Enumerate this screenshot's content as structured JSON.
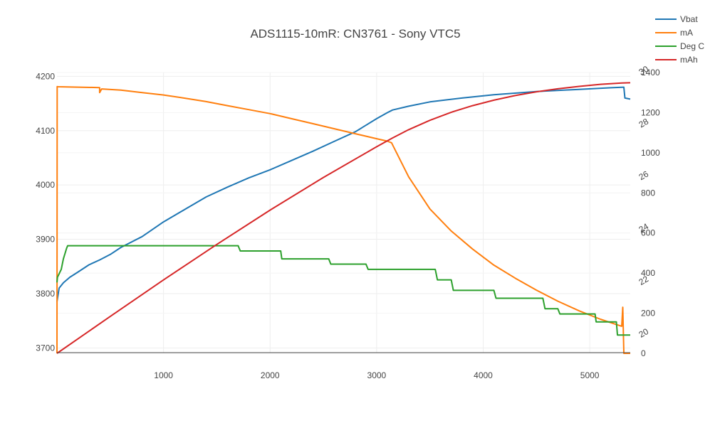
{
  "chart_data": {
    "type": "line",
    "title": "ADS1115-10mR: CN3761 - Sony VTC5",
    "xlabel": "",
    "xlim": [
      0,
      5380
    ],
    "x_ticks": [
      1000,
      2000,
      3000,
      4000,
      5000
    ],
    "grid": true,
    "legend_position": "top-right",
    "axes": {
      "y_left": {
        "label": "",
        "lim": [
          3690,
          4207
        ],
        "ticks": [
          3700,
          3800,
          3900,
          4000,
          4100,
          4200
        ]
      },
      "y_right_mA_mAh": {
        "label": "",
        "lim": [
          0,
          1400
        ],
        "ticks": [
          0,
          200,
          400,
          600,
          800,
          1000,
          1200,
          1400
        ]
      },
      "y_right_degC": {
        "label": "",
        "lim": [
          19.3,
          30
        ],
        "ticks": [
          20,
          22,
          24,
          26,
          28,
          30
        ]
      }
    },
    "series": [
      {
        "name": "Vbat",
        "axis": "y_left",
        "color": "#1f77b4",
        "x": [
          0,
          20,
          60,
          120,
          200,
          300,
          400,
          500,
          600,
          800,
          1000,
          1200,
          1400,
          1600,
          1800,
          2000,
          2200,
          2400,
          2600,
          2800,
          3000,
          3100,
          3150,
          3300,
          3500,
          3800,
          4100,
          4500,
          4900,
          5200,
          5320,
          5330,
          5380
        ],
        "y": [
          3785,
          3810,
          3820,
          3830,
          3840,
          3853,
          3862,
          3872,
          3885,
          3905,
          3932,
          3955,
          3978,
          3996,
          4013,
          4028,
          4045,
          4062,
          4080,
          4098,
          4122,
          4133,
          4138,
          4145,
          4153,
          4160,
          4166,
          4172,
          4176,
          4179,
          4180,
          4160,
          4158
        ]
      },
      {
        "name": "mA",
        "axis": "y_right_mA_mAh",
        "color": "#ff7f0e",
        "x": [
          0,
          2,
          10,
          400,
          400,
          420,
          600,
          800,
          1000,
          1200,
          1400,
          1600,
          1800,
          2000,
          2200,
          2400,
          2600,
          2800,
          3000,
          3100,
          3140,
          3300,
          3500,
          3700,
          3900,
          4100,
          4300,
          4500,
          4700,
          4900,
          5100,
          5300,
          5310,
          5320,
          5380
        ],
        "y": [
          0,
          1330,
          1329,
          1325,
          1300,
          1318,
          1312,
          1300,
          1288,
          1272,
          1255,
          1235,
          1215,
          1195,
          1170,
          1145,
          1120,
          1095,
          1070,
          1058,
          1050,
          880,
          720,
          610,
          520,
          440,
          375,
          315,
          260,
          212,
          170,
          135,
          230,
          0,
          0
        ]
      },
      {
        "name": "Deg C",
        "axis": "y_right_degC",
        "color": "#2ca02c",
        "x": [
          0,
          5,
          40,
          60,
          90,
          100,
          1700,
          1720,
          2100,
          2110,
          2550,
          2570,
          2900,
          2920,
          3550,
          3570,
          3700,
          3720,
          4100,
          4120,
          4560,
          4580,
          4700,
          4720,
          5050,
          5060,
          5250,
          5260,
          5380
        ],
        "y": [
          22,
          22.2,
          22.5,
          22.9,
          23.3,
          23.4,
          23.4,
          23.2,
          23.2,
          22.9,
          22.9,
          22.7,
          22.7,
          22.5,
          22.5,
          22.1,
          22.1,
          21.7,
          21.7,
          21.4,
          21.4,
          21.0,
          21.0,
          20.8,
          20.8,
          20.5,
          20.5,
          20.0,
          20.0
        ]
      },
      {
        "name": "mAh",
        "axis": "y_right_mA_mAh",
        "color": "#d62728",
        "x": [
          0,
          500,
          1000,
          1500,
          2000,
          2500,
          3000,
          3150,
          3300,
          3500,
          3700,
          3900,
          4100,
          4300,
          4500,
          4700,
          4900,
          5100,
          5300,
          5380
        ],
        "y": [
          0,
          184,
          366,
          543,
          714,
          877,
          1030,
          1074,
          1115,
          1162,
          1202,
          1235,
          1262,
          1285,
          1304,
          1319,
          1331,
          1341,
          1348,
          1349
        ]
      }
    ]
  }
}
